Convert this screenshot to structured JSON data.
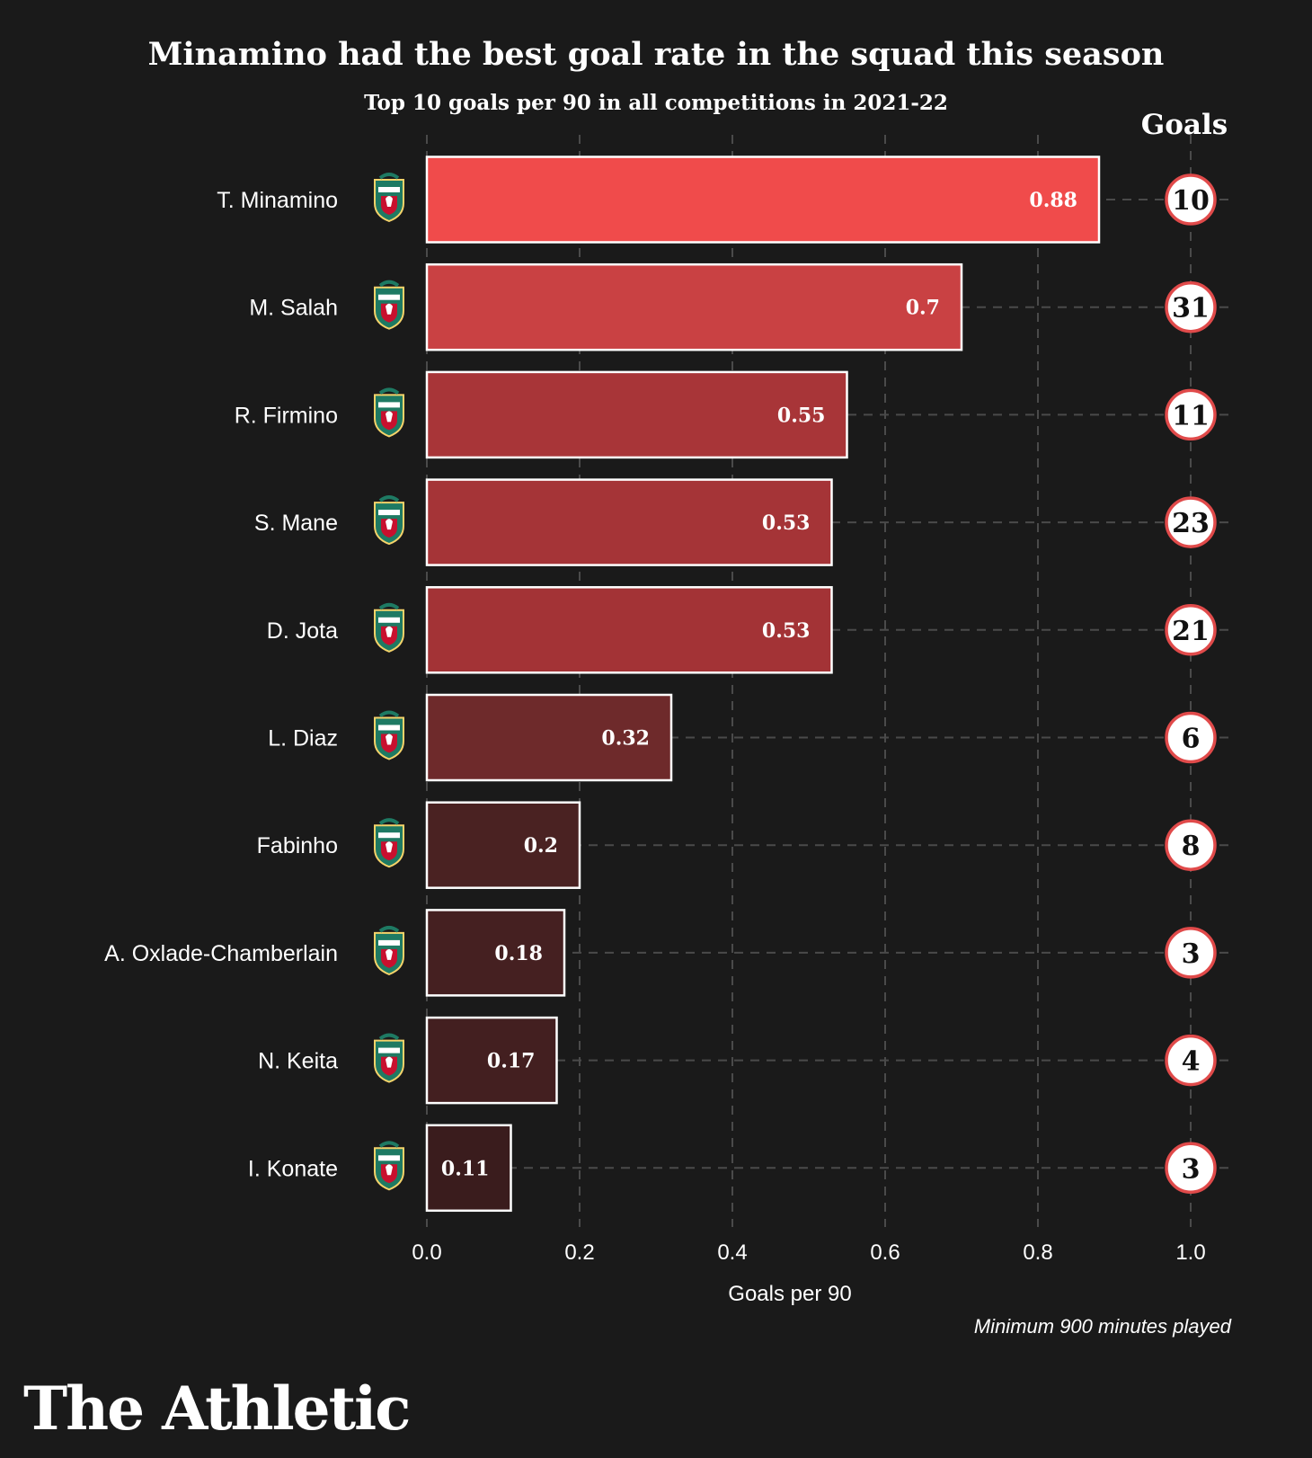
{
  "chart_data": {
    "type": "bar",
    "orientation": "horizontal",
    "title": "Minamino had the best goal rate in the squad this season",
    "subtitle": "Top 10 goals per 90 in all competitions in 2021-22",
    "xlabel": "Goals per 90",
    "xlim": [
      0,
      1.0
    ],
    "xticks": [
      "0.0",
      "0.2",
      "0.4",
      "0.6",
      "0.8",
      "1.0"
    ],
    "grid": "dashed",
    "categories": [
      "T. Minamino",
      "M. Salah",
      "R. Firmino",
      "S. Mane",
      "D. Jota",
      "L. Diaz",
      "Fabinho",
      "A. Oxlade-Chamberlain",
      "N. Keita",
      "I. Konate"
    ],
    "values": [
      0.88,
      0.7,
      0.55,
      0.53,
      0.53,
      0.32,
      0.2,
      0.18,
      0.17,
      0.11
    ],
    "value_labels": [
      "0.88",
      "0.7",
      "0.55",
      "0.53",
      "0.53",
      "0.32",
      "0.2",
      "0.18",
      "0.17",
      "0.11"
    ],
    "goals_header": "Goals",
    "goals": [
      "10",
      "31",
      "11",
      "23",
      "21",
      "6",
      "8",
      "3",
      "4",
      "3"
    ],
    "colors": [
      "#f04b4b",
      "#c94143",
      "#a83538",
      "#a53437",
      "#a33336",
      "#6e2a2b",
      "#4a2222",
      "#452021",
      "#431f20",
      "#3a1c1d"
    ],
    "bar_border": "#ffffff",
    "circle_border": "#e04a4a",
    "crest_icon": "liverpool-crest-icon",
    "footnote": "Minimum 900 minutes played"
  },
  "brand": "The Athletic"
}
